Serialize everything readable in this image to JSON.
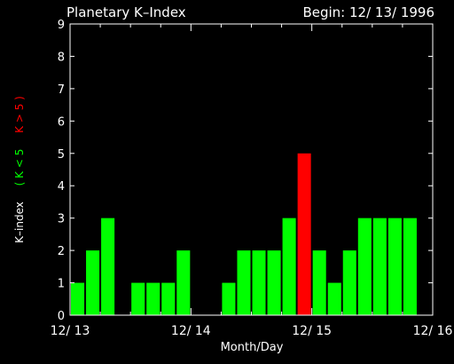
{
  "chart_data": {
    "type": "bar",
    "title": "Planetary K–Index",
    "begin_label": "Begin: 12/ 13/ 1996",
    "xlabel": "Month/Day",
    "ylabel": {
      "prefix": "K–index",
      "low_part": "( K < 5",
      "high_part": "K > 5 )"
    },
    "ylim": [
      0,
      9
    ],
    "yticks": [
      "0",
      "1",
      "2",
      "3",
      "4",
      "5",
      "6",
      "7",
      "8",
      "9"
    ],
    "xlim_days": [
      0,
      3
    ],
    "xticks": [
      {
        "day": 0,
        "label": "12/ 13"
      },
      {
        "day": 1,
        "label": "12/ 14"
      },
      {
        "day": 2,
        "label": "12/ 15"
      },
      {
        "day": 3,
        "label": "12/ 16"
      }
    ],
    "bars_per_day": 8,
    "values": [
      1,
      2,
      3,
      0,
      1,
      1,
      1,
      2,
      0,
      0,
      1,
      2,
      2,
      2,
      3,
      5,
      2,
      1,
      2,
      3,
      3,
      3,
      3,
      0
    ],
    "threshold": 5,
    "colors": {
      "background": "#000000",
      "axes": "#ffffff",
      "low": "#00ff00",
      "high": "#ff0000"
    }
  }
}
